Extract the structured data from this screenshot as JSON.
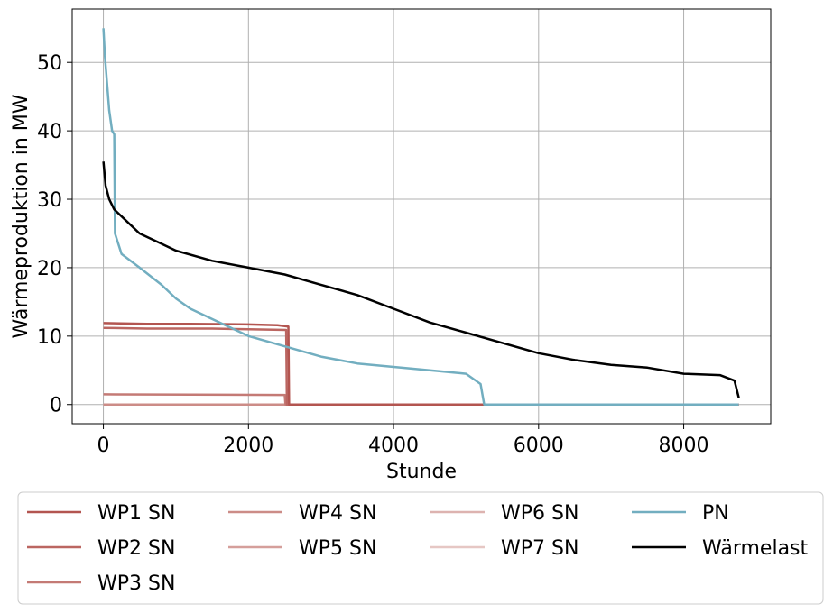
{
  "chart_data": {
    "type": "line",
    "xlabel": "Stunde",
    "ylabel": "Wärmeproduktion in MW",
    "xlim": [
      -430,
      9200
    ],
    "ylim": [
      -2.8,
      57.8
    ],
    "xticks": [
      0,
      2000,
      4000,
      6000,
      8000
    ],
    "yticks": [
      0,
      10,
      20,
      30,
      40,
      50
    ],
    "grid": true,
    "legend_position": "below plot",
    "series": [
      {
        "name": "WP1 SN",
        "color": "#b35550",
        "points": [
          [
            0,
            11.9
          ],
          [
            600,
            11.8
          ],
          [
            1200,
            11.8
          ],
          [
            2000,
            11.7
          ],
          [
            2400,
            11.6
          ],
          [
            2550,
            11.4
          ],
          [
            2560,
            0
          ],
          [
            8760,
            0
          ]
        ]
      },
      {
        "name": "WP2 SN",
        "color": "#bb6661",
        "points": [
          [
            0,
            11.2
          ],
          [
            600,
            11.1
          ],
          [
            1500,
            11.1
          ],
          [
            2000,
            11.0
          ],
          [
            2520,
            10.9
          ],
          [
            2530,
            0
          ],
          [
            8760,
            0
          ]
        ]
      },
      {
        "name": "WP3 SN",
        "color": "#c47a75",
        "points": [
          [
            0,
            1.5
          ],
          [
            2500,
            1.4
          ],
          [
            2510,
            0
          ],
          [
            8760,
            0
          ]
        ]
      },
      {
        "name": "WP4 SN",
        "color": "#cc8c87",
        "points": [
          [
            0,
            0
          ],
          [
            8760,
            0
          ]
        ]
      },
      {
        "name": "WP5 SN",
        "color": "#d59f9b",
        "points": [
          [
            0,
            0
          ],
          [
            8760,
            0
          ]
        ]
      },
      {
        "name": "WP6 SN",
        "color": "#ddb3b0",
        "points": [
          [
            0,
            0
          ],
          [
            8760,
            0
          ]
        ]
      },
      {
        "name": "WP7 SN",
        "color": "#e6c7c4",
        "points": [
          [
            0,
            0
          ],
          [
            8760,
            0
          ]
        ]
      },
      {
        "name": "PN",
        "color": "#72aec0",
        "points": [
          [
            0,
            55
          ],
          [
            20,
            51
          ],
          [
            50,
            47
          ],
          [
            80,
            43
          ],
          [
            120,
            40
          ],
          [
            150,
            39.5
          ],
          [
            160,
            25
          ],
          [
            250,
            22
          ],
          [
            500,
            20
          ],
          [
            800,
            17.5
          ],
          [
            1000,
            15.5
          ],
          [
            1200,
            14
          ],
          [
            1500,
            12.5
          ],
          [
            2000,
            10
          ],
          [
            2500,
            8.5
          ],
          [
            3000,
            7
          ],
          [
            3500,
            6
          ],
          [
            4000,
            5.5
          ],
          [
            4500,
            5
          ],
          [
            5000,
            4.5
          ],
          [
            5200,
            3
          ],
          [
            5250,
            0
          ],
          [
            8760,
            0
          ]
        ]
      },
      {
        "name": "Wärmelast",
        "color": "#000000",
        "points": [
          [
            0,
            35.5
          ],
          [
            30,
            32
          ],
          [
            80,
            30
          ],
          [
            150,
            28.5
          ],
          [
            300,
            27
          ],
          [
            500,
            25
          ],
          [
            800,
            23.5
          ],
          [
            1000,
            22.5
          ],
          [
            1500,
            21
          ],
          [
            2000,
            20
          ],
          [
            2500,
            19
          ],
          [
            3000,
            17.5
          ],
          [
            3500,
            16
          ],
          [
            4000,
            14
          ],
          [
            4500,
            12
          ],
          [
            5000,
            10.5
          ],
          [
            5500,
            9
          ],
          [
            6000,
            7.5
          ],
          [
            6500,
            6.5
          ],
          [
            7000,
            5.8
          ],
          [
            7500,
            5.4
          ],
          [
            8000,
            4.5
          ],
          [
            8500,
            4.3
          ],
          [
            8700,
            3.5
          ],
          [
            8760,
            1
          ]
        ]
      }
    ]
  }
}
